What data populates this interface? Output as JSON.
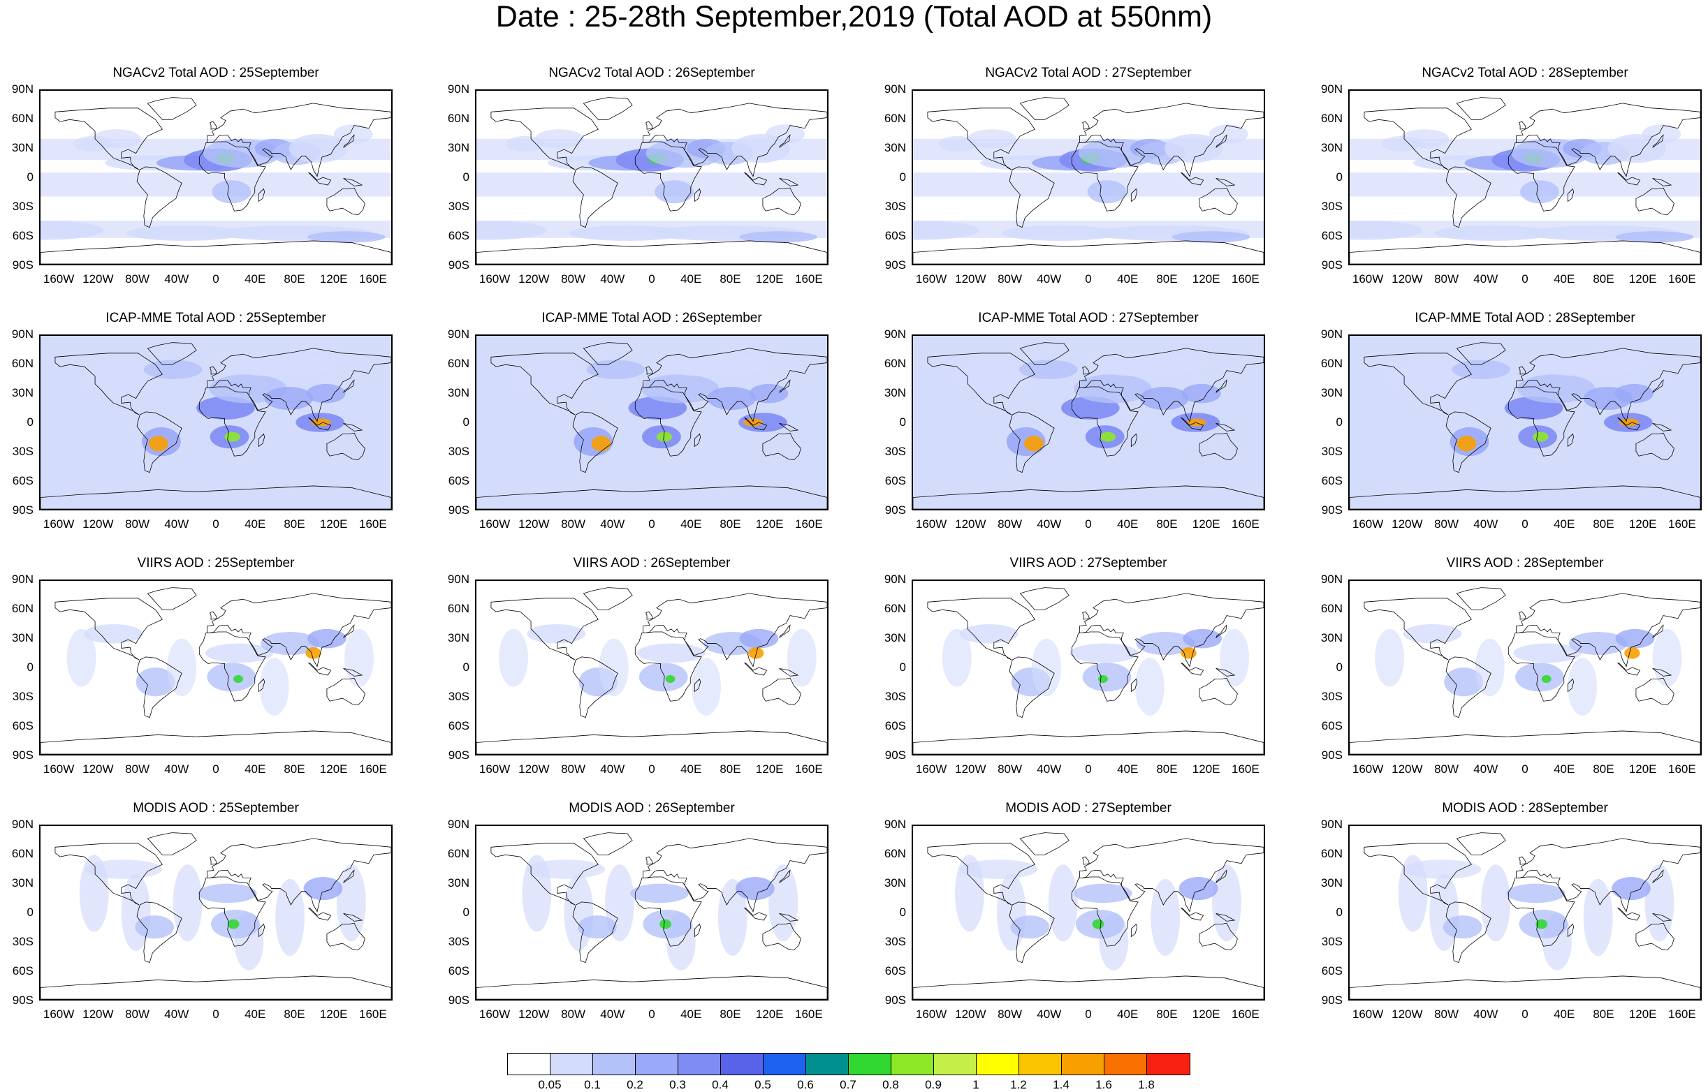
{
  "title": "Date : 25-28th September,2019 (Total AOD at 550nm)",
  "colors": {
    "ocean": "#ffffff",
    "light_aod": "#d4dcfc",
    "mid_aod": "#9aa9f8",
    "dark_aod": "#5963ea",
    "coast": "#000000"
  },
  "lat_ticks": [
    "90N",
    "60N",
    "30N",
    "0",
    "30S",
    "60S",
    "90S"
  ],
  "lon_ticks": [
    "160W",
    "120W",
    "80W",
    "40W",
    "0",
    "40E",
    "80E",
    "120E",
    "160E"
  ],
  "rows": [
    {
      "product": "NGACv2",
      "panels": [
        {
          "title": "NGACv2 Total AOD : 25September"
        },
        {
          "title": "NGACv2 Total AOD : 26September"
        },
        {
          "title": "NGACv2 Total AOD : 27September"
        },
        {
          "title": "NGACv2 Total AOD : 28September"
        }
      ]
    },
    {
      "product": "ICAP-MME",
      "panels": [
        {
          "title": "ICAP-MME Total AOD : 25September"
        },
        {
          "title": "ICAP-MME Total AOD : 26September"
        },
        {
          "title": "ICAP-MME Total AOD : 27September"
        },
        {
          "title": "ICAP-MME Total AOD : 28September"
        }
      ]
    },
    {
      "product": "VIIRS",
      "panels": [
        {
          "title": "VIIRS AOD : 25September"
        },
        {
          "title": "VIIRS AOD : 26September"
        },
        {
          "title": "VIIRS AOD : 27September"
        },
        {
          "title": "VIIRS AOD : 28September"
        }
      ]
    },
    {
      "product": "MODIS",
      "panels": [
        {
          "title": "MODIS AOD : 25September"
        },
        {
          "title": "MODIS AOD : 26September"
        },
        {
          "title": "MODIS AOD : 27September"
        },
        {
          "title": "MODIS AOD : 28September"
        }
      ]
    }
  ],
  "colorbar": {
    "colors": [
      "#ffffff",
      "#d4dcfc",
      "#b4c2fa",
      "#9aa9f8",
      "#7f8cf4",
      "#5963ea",
      "#1e62f0",
      "#009090",
      "#32d832",
      "#8ee828",
      "#c4ee48",
      "#ffff00",
      "#fbc400",
      "#f8a000",
      "#f87000",
      "#f82010"
    ],
    "labels": [
      "0.05",
      "0.1",
      "0.2",
      "0.3",
      "0.4",
      "0.5",
      "0.6",
      "0.7",
      "0.8",
      "0.9",
      "1",
      "1.2",
      "1.4",
      "1.6",
      "1.8"
    ]
  }
}
